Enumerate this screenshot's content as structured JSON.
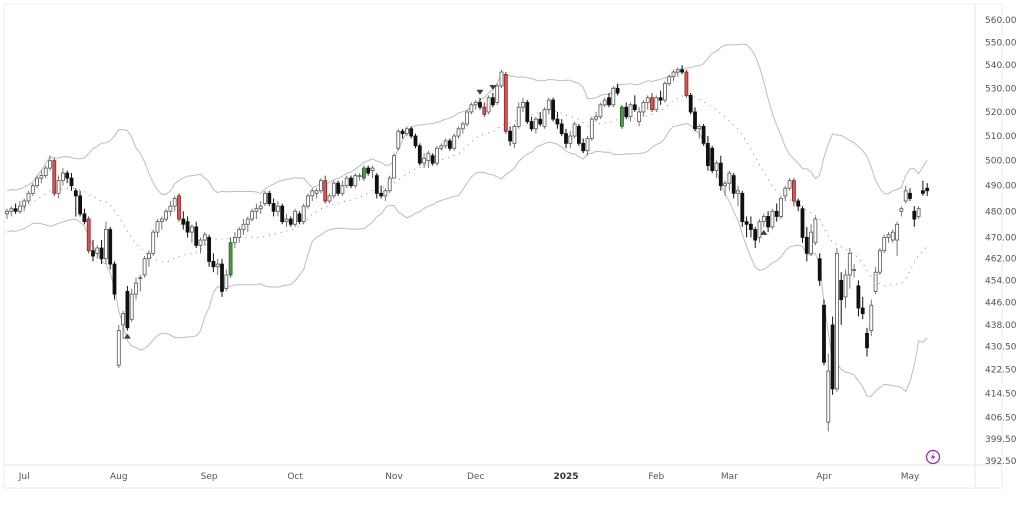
{
  "chart_data": {
    "type": "candlestick",
    "title": "",
    "y_scale": "log",
    "ylim": [
      392.5,
      560
    ],
    "y_ticks": [
      "560.00",
      "550.00",
      "540.00",
      "530.00",
      "520.00",
      "510.00",
      "500.00",
      "490.00",
      "480.00",
      "470.00",
      "462.00",
      "454.00",
      "446.00",
      "438.00",
      "430.50",
      "422.50",
      "414.50",
      "406.50",
      "399.50",
      "392.50"
    ],
    "x_ticks": [
      {
        "label": "Jul",
        "index": 4
      },
      {
        "label": "Aug",
        "index": 26
      },
      {
        "label": "Sep",
        "index": 47
      },
      {
        "label": "Oct",
        "index": 67
      },
      {
        "label": "Nov",
        "index": 90
      },
      {
        "label": "Dec",
        "index": 109
      },
      {
        "label": "2025",
        "index": 130,
        "bold": true
      },
      {
        "label": "Feb",
        "index": 151
      },
      {
        "label": "Mar",
        "index": 168
      },
      {
        "label": "Apr",
        "index": 190
      },
      {
        "label": "May",
        "index": 210
      }
    ],
    "indicator": {
      "type": "bollinger",
      "period": 20,
      "stddev": 2
    },
    "candles_ohlc": [
      [
        479,
        481,
        477,
        480
      ],
      [
        480,
        482,
        478,
        481
      ],
      [
        481,
        483,
        479,
        480
      ],
      [
        480,
        484,
        479,
        482
      ],
      [
        482,
        485,
        480,
        484
      ],
      [
        484,
        488,
        483,
        487
      ],
      [
        487,
        491,
        486,
        490
      ],
      [
        490,
        494,
        489,
        493
      ],
      [
        493,
        496,
        491,
        494
      ],
      [
        494,
        498,
        493,
        497
      ],
      [
        497,
        502,
        496,
        500
      ],
      [
        500,
        501,
        486,
        487
      ],
      [
        487,
        494,
        485,
        492
      ],
      [
        492,
        497,
        490,
        495
      ],
      [
        495,
        496,
        491,
        493
      ],
      [
        493,
        495,
        488,
        490
      ],
      [
        488,
        489,
        478,
        486
      ],
      [
        486,
        488,
        478,
        479
      ],
      [
        479,
        481,
        475,
        476
      ],
      [
        477,
        478,
        464,
        465
      ],
      [
        465,
        469,
        461,
        463
      ],
      [
        464,
        467,
        462,
        466
      ],
      [
        466,
        469,
        460,
        462
      ],
      [
        462,
        476,
        460,
        473
      ],
      [
        473,
        474,
        458,
        460
      ],
      [
        460,
        461,
        447,
        449
      ],
      [
        424,
        438,
        423,
        436
      ],
      [
        438,
        443,
        433,
        442
      ],
      [
        450,
        452,
        436,
        437
      ],
      [
        440,
        451,
        439,
        449
      ],
      [
        449,
        455,
        447,
        453
      ],
      [
        455,
        456,
        450,
        455
      ],
      [
        456,
        463,
        455,
        462
      ],
      [
        462,
        465,
        459,
        464
      ],
      [
        464,
        473,
        463,
        472
      ],
      [
        472,
        477,
        470,
        476
      ],
      [
        476,
        478,
        473,
        477
      ],
      [
        477,
        481,
        476,
        480
      ],
      [
        480,
        484,
        478,
        482
      ],
      [
        482,
        486,
        480,
        485
      ],
      [
        486,
        487,
        476,
        477
      ],
      [
        477,
        480,
        473,
        475
      ],
      [
        476,
        478,
        470,
        472
      ],
      [
        472,
        475,
        468,
        474
      ],
      [
        474,
        476,
        466,
        467
      ],
      [
        467,
        470,
        464,
        469
      ],
      [
        469,
        472,
        467,
        471
      ],
      [
        470,
        471,
        459,
        461
      ],
      [
        461,
        464,
        457,
        459
      ],
      [
        459,
        462,
        456,
        460
      ],
      [
        460,
        462,
        448,
        450
      ],
      [
        451,
        458,
        450,
        456
      ],
      [
        456,
        470,
        455,
        468
      ],
      [
        468,
        472,
        466,
        470
      ],
      [
        470,
        474,
        468,
        473
      ],
      [
        473,
        477,
        471,
        475
      ],
      [
        475,
        478,
        472,
        477
      ],
      [
        477,
        481,
        476,
        480
      ],
      [
        480,
        483,
        477,
        481
      ],
      [
        481,
        484,
        479,
        482
      ],
      [
        483,
        488,
        482,
        487
      ],
      [
        487,
        488,
        482,
        483
      ],
      [
        483,
        485,
        478,
        480
      ],
      [
        480,
        484,
        478,
        482
      ],
      [
        482,
        483,
        475,
        476
      ],
      [
        476,
        479,
        474,
        477
      ],
      [
        477,
        478,
        474,
        475
      ],
      [
        475,
        481,
        474,
        480
      ],
      [
        479,
        480,
        475,
        476
      ],
      [
        476,
        483,
        475,
        482
      ],
      [
        482,
        487,
        481,
        486
      ],
      [
        486,
        489,
        484,
        488
      ],
      [
        487,
        489,
        485,
        488
      ],
      [
        488,
        493,
        487,
        492
      ],
      [
        492,
        494,
        483,
        484
      ],
      [
        484,
        487,
        483,
        486
      ],
      [
        486,
        492,
        485,
        491
      ],
      [
        491,
        492,
        486,
        487
      ],
      [
        487,
        492,
        486,
        490
      ],
      [
        490,
        494,
        489,
        493
      ],
      [
        493,
        494,
        489,
        490
      ],
      [
        490,
        495,
        489,
        494
      ],
      [
        494,
        495,
        492,
        494
      ],
      [
        493,
        498,
        492,
        497
      ],
      [
        497,
        498,
        494,
        495
      ],
      [
        496,
        498,
        493,
        497
      ],
      [
        494,
        495,
        485,
        487
      ],
      [
        487,
        490,
        485,
        486
      ],
      [
        486,
        489,
        484,
        488
      ],
      [
        488,
        494,
        487,
        493
      ],
      [
        493,
        503,
        493,
        502
      ],
      [
        505,
        513,
        504,
        512
      ],
      [
        512,
        513,
        509,
        511
      ],
      [
        511,
        514,
        510,
        513
      ],
      [
        513,
        514,
        509,
        510
      ],
      [
        510,
        511,
        505,
        506
      ],
      [
        506,
        507,
        498,
        499
      ],
      [
        499,
        503,
        497,
        501
      ],
      [
        500,
        504,
        497,
        503
      ],
      [
        502,
        503,
        498,
        499
      ],
      [
        499,
        506,
        498,
        505
      ],
      [
        505,
        507,
        504,
        506
      ],
      [
        506,
        509,
        505,
        508
      ],
      [
        508,
        509,
        504,
        505
      ],
      [
        505,
        511,
        504,
        510
      ],
      [
        510,
        514,
        509,
        513
      ],
      [
        513,
        516,
        511,
        515
      ],
      [
        515,
        521,
        514,
        520
      ],
      [
        520,
        524,
        519,
        523
      ],
      [
        523,
        525,
        521,
        524
      ],
      [
        524,
        526,
        521,
        522
      ],
      [
        522,
        524,
        518,
        519
      ],
      [
        520,
        527,
        519,
        526
      ],
      [
        526,
        528,
        522,
        523
      ],
      [
        524,
        532,
        523,
        531
      ],
      [
        531,
        538,
        530,
        537
      ],
      [
        536,
        537,
        511,
        512
      ],
      [
        512,
        514,
        506,
        508
      ],
      [
        507,
        515,
        505,
        514
      ],
      [
        514,
        524,
        513,
        522
      ],
      [
        522,
        526,
        520,
        524
      ],
      [
        524,
        525,
        515,
        516
      ],
      [
        516,
        518,
        512,
        513
      ],
      [
        513,
        518,
        511,
        517
      ],
      [
        517,
        520,
        514,
        515
      ],
      [
        514,
        522,
        513,
        521
      ],
      [
        521,
        526,
        519,
        525
      ],
      [
        525,
        526,
        516,
        517
      ],
      [
        517,
        520,
        513,
        515
      ],
      [
        515,
        517,
        510,
        511
      ],
      [
        511,
        513,
        505,
        507
      ],
      [
        507,
        512,
        505,
        510
      ],
      [
        510,
        516,
        509,
        515
      ],
      [
        514,
        515,
        506,
        507
      ],
      [
        507,
        509,
        503,
        504
      ],
      [
        504,
        510,
        502,
        509
      ],
      [
        509,
        518,
        508,
        517
      ],
      [
        517,
        520,
        516,
        518
      ],
      [
        518,
        524,
        517,
        523
      ],
      [
        523,
        526,
        522,
        525
      ],
      [
        526,
        528,
        522,
        523
      ],
      [
        523,
        531,
        522,
        530
      ],
      [
        530,
        532,
        527,
        528
      ],
      [
        514,
        523,
        513,
        522
      ],
      [
        522,
        524,
        517,
        518
      ],
      [
        518,
        524,
        516,
        523
      ],
      [
        523,
        527,
        520,
        521
      ],
      [
        516,
        522,
        514,
        520
      ],
      [
        520,
        525,
        518,
        524
      ],
      [
        524,
        527,
        521,
        526
      ],
      [
        526,
        528,
        520,
        521
      ],
      [
        521,
        527,
        520,
        526
      ],
      [
        526,
        529,
        523,
        525
      ],
      [
        525,
        533,
        524,
        532
      ],
      [
        532,
        536,
        531,
        535
      ],
      [
        535,
        538,
        533,
        537
      ],
      [
        537,
        539,
        535,
        538
      ],
      [
        538,
        540,
        536,
        537
      ],
      [
        537,
        538,
        526,
        527
      ],
      [
        527,
        528,
        519,
        520
      ],
      [
        520,
        522,
        512,
        513
      ],
      [
        513,
        515,
        509,
        514
      ],
      [
        514,
        515,
        506,
        507
      ],
      [
        507,
        510,
        496,
        498
      ],
      [
        505,
        506,
        495,
        496
      ],
      [
        496,
        500,
        493,
        499
      ],
      [
        499,
        502,
        488,
        490
      ],
      [
        490,
        492,
        486,
        491
      ],
      [
        491,
        496,
        488,
        495
      ],
      [
        494,
        495,
        485,
        487
      ],
      [
        487,
        490,
        482,
        488
      ],
      [
        487,
        488,
        474,
        476
      ],
      [
        476,
        478,
        470,
        475
      ],
      [
        475,
        478,
        470,
        473
      ],
      [
        473,
        474,
        466,
        469
      ],
      [
        470,
        477,
        468,
        476
      ],
      [
        476,
        479,
        474,
        478
      ],
      [
        478,
        480,
        472,
        474
      ],
      [
        474,
        481,
        473,
        480
      ],
      [
        480,
        483,
        476,
        478
      ],
      [
        478,
        486,
        477,
        485
      ],
      [
        486,
        490,
        484,
        489
      ],
      [
        489,
        493,
        488,
        492
      ],
      [
        492,
        493,
        482,
        484
      ],
      [
        484,
        485,
        480,
        482
      ],
      [
        481,
        482,
        468,
        470
      ],
      [
        470,
        474,
        461,
        464
      ],
      [
        464,
        475,
        463,
        472
      ],
      [
        468,
        478,
        467,
        477
      ],
      [
        462,
        464,
        452,
        454
      ],
      [
        445,
        447,
        424,
        425
      ],
      [
        405,
        428,
        402,
        422
      ],
      [
        438,
        441,
        414,
        416
      ],
      [
        416,
        466,
        415,
        464
      ],
      [
        454,
        457,
        438,
        447
      ],
      [
        448,
        458,
        444,
        456
      ],
      [
        456,
        466,
        451,
        464
      ],
      [
        458,
        460,
        455,
        458
      ],
      [
        452,
        454,
        441,
        444
      ],
      [
        444,
        448,
        440,
        442
      ],
      [
        435,
        437,
        427,
        430
      ],
      [
        436,
        447,
        434,
        445
      ],
      [
        450,
        459,
        449,
        457
      ],
      [
        457,
        466,
        456,
        465
      ],
      [
        465,
        471,
        464,
        470
      ],
      [
        470,
        472,
        468,
        471
      ],
      [
        469,
        473,
        468,
        472
      ],
      [
        469,
        476,
        463,
        475
      ],
      [
        480,
        482,
        478,
        481
      ],
      [
        484,
        490,
        483,
        488
      ],
      [
        487,
        489,
        484,
        485
      ],
      [
        480,
        482,
        474,
        477
      ],
      [
        478,
        482,
        477,
        481
      ],
      [
        488,
        492,
        486,
        487
      ],
      [
        489,
        491,
        486,
        488
      ]
    ],
    "highlight_red_indices": [
      11,
      19,
      40,
      74,
      111,
      116,
      150,
      158,
      183
    ],
    "highlight_green_indices": [
      52,
      83,
      143
    ],
    "markers": [
      {
        "index": 28,
        "type": "triangle-up",
        "position": "below"
      },
      {
        "index": 110,
        "type": "triangle-down",
        "position": "above"
      },
      {
        "index": 113,
        "type": "triangle-down",
        "position": "above"
      },
      {
        "index": 176,
        "type": "triangle-up",
        "position": "below"
      }
    ],
    "colors": {
      "up_fill": "#ffffff",
      "up_border": "#555555",
      "down": "#111111",
      "red": "#e05252",
      "green": "#4a9a4a",
      "band": "#bdbdbd",
      "mid": "#888888",
      "marker": "#3a3f4b",
      "accent": "#9c27b0"
    }
  },
  "icons": {
    "lightning": "lightning-icon"
  }
}
